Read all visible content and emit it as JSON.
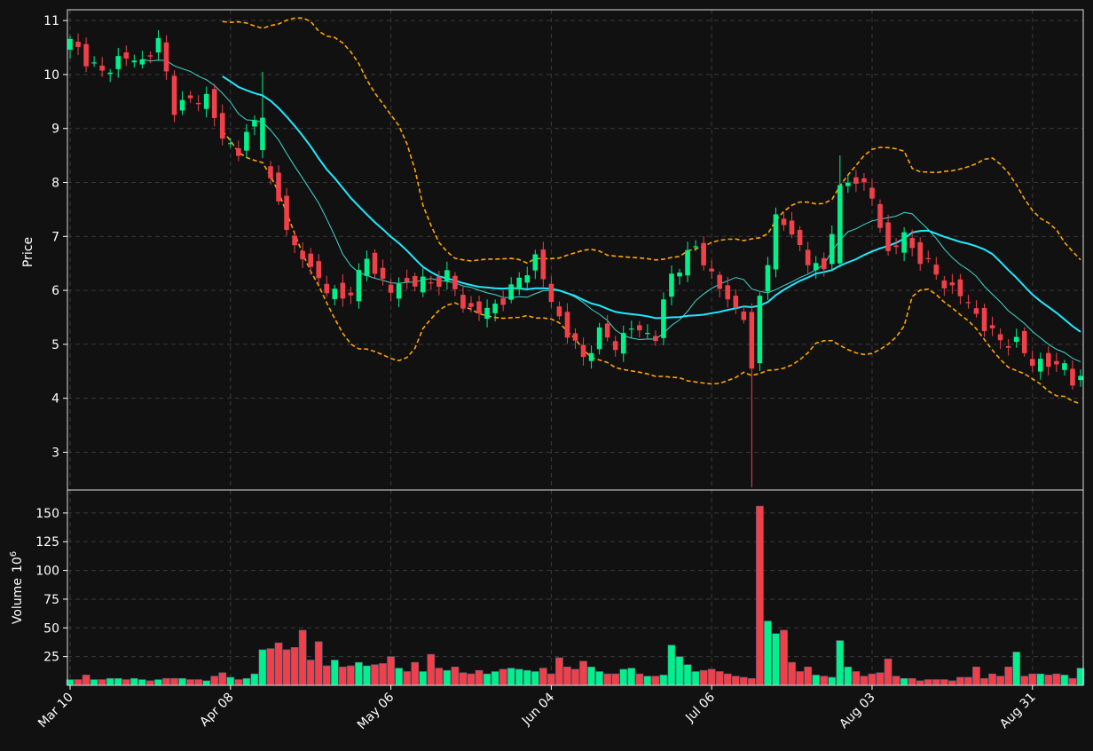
{
  "chart_data": {
    "type": "candlestick",
    "price_panel": {
      "ylabel": "Price",
      "ylim": [
        2.3,
        11.2
      ],
      "yticks": [
        "3",
        "4",
        "5",
        "6",
        "7",
        "8",
        "9",
        "10",
        "11"
      ],
      "grid": true
    },
    "volume_panel": {
      "ylabel": "Volume",
      "ylabel_exponent": "6",
      "ylim": [
        0,
        170
      ],
      "yticks": [
        "25",
        "50",
        "75",
        "100",
        "125",
        "150"
      ],
      "grid": true
    },
    "x_ticks": [
      {
        "label": "Mar 10",
        "index": 0
      },
      {
        "label": "Apr 08",
        "index": 20
      },
      {
        "label": "May 06",
        "index": 40
      },
      {
        "label": "Jun 04",
        "index": 60
      },
      {
        "label": "Jul 06",
        "index": 80
      },
      {
        "label": "Aug 03",
        "index": 100
      },
      {
        "label": "Aug 31",
        "index": 120
      }
    ],
    "colors": {
      "background": "#111111",
      "up": "#00f08c",
      "down": "#f0404a",
      "ma_fast": "#3fd9d0",
      "ma_slow": "#22e8ff",
      "bands": "#ffa500",
      "grid": "#3a3a3a",
      "frame": "#dddddd"
    },
    "close_anchors": [
      [
        0,
        10.6
      ],
      [
        4,
        10.0
      ],
      [
        6,
        10.3
      ],
      [
        9,
        10.25
      ],
      [
        11,
        10.6
      ],
      [
        13,
        9.4
      ],
      [
        17,
        9.6
      ],
      [
        19,
        8.8
      ],
      [
        21,
        8.6
      ],
      [
        23,
        9.1
      ],
      [
        25,
        8.0
      ],
      [
        28,
        6.8
      ],
      [
        31,
        6.2
      ],
      [
        34,
        5.8
      ],
      [
        37,
        6.55
      ],
      [
        40,
        6.0
      ],
      [
        43,
        6.2
      ],
      [
        45,
        6.1
      ],
      [
        47,
        6.3
      ],
      [
        49,
        5.7
      ],
      [
        52,
        5.6
      ],
      [
        55,
        6.0
      ],
      [
        58,
        6.6
      ],
      [
        60,
        5.8
      ],
      [
        62,
        5.2
      ],
      [
        64,
        4.75
      ],
      [
        66,
        5.2
      ],
      [
        68,
        5.0
      ],
      [
        70,
        5.3
      ],
      [
        73,
        5.15
      ],
      [
        75,
        6.3
      ],
      [
        78,
        6.8
      ],
      [
        80,
        6.3
      ],
      [
        82,
        5.8
      ],
      [
        84,
        5.55
      ],
      [
        85,
        4.6
      ],
      [
        86,
        5.9
      ],
      [
        88,
        7.3
      ],
      [
        90,
        7.1
      ],
      [
        92,
        6.5
      ],
      [
        94,
        6.4
      ],
      [
        96,
        7.9
      ],
      [
        98,
        8.1
      ],
      [
        100,
        7.7
      ],
      [
        102,
        6.7
      ],
      [
        104,
        7.0
      ],
      [
        106,
        6.6
      ],
      [
        108,
        6.3
      ],
      [
        110,
        6.0
      ],
      [
        112,
        5.8
      ],
      [
        114,
        5.3
      ],
      [
        116,
        5.1
      ],
      [
        118,
        5.0
      ],
      [
        120,
        4.7
      ],
      [
        122,
        4.6
      ],
      [
        124,
        4.65
      ],
      [
        125,
        4.3
      ]
    ],
    "volume_by_index": [
      5,
      5,
      9,
      5,
      5,
      6,
      6,
      5,
      6,
      5,
      4,
      5,
      6,
      6,
      6,
      5,
      5,
      4,
      8,
      11,
      7,
      5,
      6,
      10,
      31,
      32,
      37,
      31,
      33,
      48,
      22,
      38,
      17,
      22,
      16,
      17,
      20,
      17,
      18,
      19,
      25,
      15,
      12,
      20,
      12,
      27,
      15,
      13,
      16,
      11,
      10,
      13,
      10,
      12,
      14,
      15,
      14,
      13,
      12,
      15,
      10,
      24,
      16,
      14,
      21,
      16,
      12,
      10,
      10,
      14,
      15,
      10,
      8,
      8,
      9,
      35,
      25,
      18,
      12,
      13,
      14,
      12,
      10,
      8,
      7,
      6,
      156,
      56,
      45,
      48,
      20,
      12,
      16,
      9,
      8,
      7,
      39,
      16,
      12,
      8,
      10,
      11,
      23,
      8,
      6,
      6,
      4,
      5,
      5,
      5,
      4,
      7,
      7,
      16,
      6,
      10,
      8,
      16,
      29,
      8,
      10,
      10,
      9,
      10,
      9,
      6,
      15
    ],
    "down_volume_override": [
      86,
      102
    ]
  }
}
